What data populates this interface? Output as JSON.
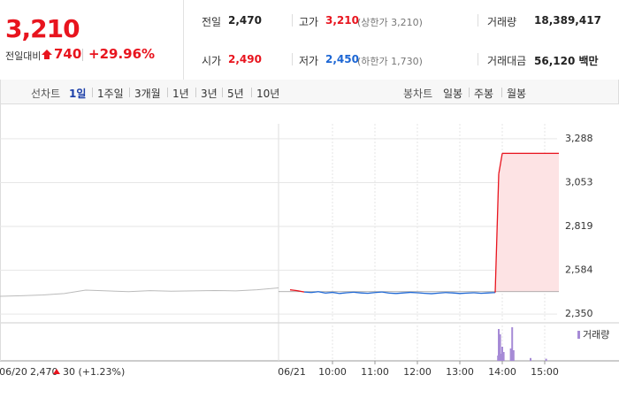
{
  "header": {
    "price": "3,210",
    "change_label": "전일대비",
    "change": "740",
    "change_rate": "+29.96%",
    "stats": [
      {
        "label": "전일",
        "value": "2,470"
      },
      {
        "label": "고가",
        "value": "3,210",
        "note": "(상한가 3,210)"
      },
      {
        "label": "거래량",
        "value": "18,389,417"
      },
      {
        "label": "시가",
        "value": "2,490"
      },
      {
        "label": "저가",
        "value": "2,450",
        "note": "(하한가 1,730)"
      },
      {
        "label": "거래대금",
        "value": "56,120 백만"
      }
    ]
  },
  "toolbar": {
    "line_label": "선차트",
    "line_options": [
      "1일",
      "1주일",
      "3개월",
      "1년",
      "3년",
      "5년",
      "10년"
    ],
    "candle_label": "봉차트",
    "candle_options": [
      "일봉",
      "주봉",
      "월봉"
    ]
  },
  "chart_data": {
    "type": "line",
    "date": "06/21",
    "ylim": [
      2303,
      3368
    ],
    "yticks": [
      {
        "value": 2350,
        "label": "2,350"
      },
      {
        "value": 2584,
        "label": "2,584"
      },
      {
        "value": 2819,
        "label": "2,819"
      },
      {
        "value": 3053,
        "label": "3,053"
      },
      {
        "value": 3288,
        "label": "3,288"
      }
    ],
    "xticks": [
      "10:00",
      "11:00",
      "12:00",
      "13:00",
      "14:00",
      "15:00"
    ],
    "base": {
      "value": 2470,
      "label": "2,470"
    },
    "up_color": "#e8141e",
    "down_color": "#1c66d4",
    "area_color": "#fde3e4",
    "x": [
      "09:00",
      "09:10",
      "09:20",
      "09:30",
      "09:40",
      "09:50",
      "10:00",
      "10:10",
      "10:20",
      "10:30",
      "10:40",
      "10:50",
      "11:00",
      "11:10",
      "11:20",
      "11:30",
      "11:40",
      "11:50",
      "12:00",
      "12:10",
      "12:20",
      "12:30",
      "12:40",
      "12:50",
      "13:00",
      "13:10",
      "13:20",
      "13:30",
      "13:40",
      "13:50",
      "13:55",
      "14:00",
      "14:10",
      "14:20",
      "14:30",
      "14:40",
      "14:50",
      "15:00",
      "15:10",
      "15:20"
    ],
    "values": [
      2480,
      2475,
      2468,
      2465,
      2470,
      2462,
      2466,
      2460,
      2464,
      2467,
      2463,
      2461,
      2465,
      2468,
      2462,
      2460,
      2463,
      2466,
      2464,
      2461,
      2459,
      2462,
      2465,
      2463,
      2460,
      2462,
      2464,
      2461,
      2463,
      2465,
      3100,
      3210,
      3210,
      3210,
      3210,
      3210,
      3210,
      3210,
      3210,
      3210
    ],
    "prev_day": {
      "date": "06/20",
      "change": "30 (+1.23%)",
      "color": "#bbbbbb",
      "x": [
        "09:00",
        "09:30",
        "10:00",
        "10:30",
        "11:00",
        "11:30",
        "12:00",
        "12:30",
        "13:00",
        "13:30",
        "14:00",
        "14:30",
        "15:00",
        "15:30"
      ],
      "values": [
        2445,
        2448,
        2452,
        2460,
        2478,
        2474,
        2470,
        2475,
        2472,
        2474,
        2476,
        2474,
        2480,
        2490
      ]
    },
    "volume": {
      "name": "거래량",
      "color": "#a68bd6",
      "ylim": [
        0,
        100
      ],
      "x": [
        "13:54",
        "13:55",
        "13:56",
        "13:57",
        "13:58",
        "14:00",
        "14:02",
        "14:12",
        "14:14",
        "14:16",
        "14:40",
        "15:02"
      ],
      "values": [
        15,
        90,
        30,
        75,
        20,
        40,
        25,
        35,
        95,
        30,
        8,
        6
      ]
    }
  }
}
